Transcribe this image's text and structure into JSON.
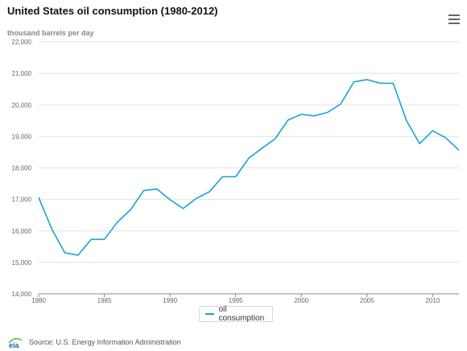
{
  "title": "United States oil consumption (1980-2012)",
  "menu_icon": "hamburger-menu-icon",
  "colors": {
    "series": "#1aa3d6",
    "grid": "#e2e2e2",
    "axis": "#888888"
  },
  "source": "Source: U.S. Energy Information Administration",
  "logo_text": "eia",
  "chart_data": {
    "type": "line",
    "title": "United States oil consumption (1980-2012)",
    "ylabel": "thousand barrels per day",
    "xlabel": "",
    "xlim": [
      1980,
      2012
    ],
    "ylim": [
      14000,
      22000
    ],
    "yticks": [
      14000,
      15000,
      16000,
      17000,
      18000,
      19000,
      20000,
      21000,
      22000
    ],
    "ytick_labels": [
      "14,000",
      "15,000",
      "16,000",
      "17,000",
      "18,000",
      "19,000",
      "20,000",
      "21,000",
      "22,000"
    ],
    "xticks": [
      1980,
      1985,
      1990,
      1995,
      2000,
      2005,
      2010
    ],
    "xtick_labels": [
      "1980",
      "1985",
      "1990",
      "1995",
      "2000",
      "2005",
      "2010"
    ],
    "grid": true,
    "legend_position": "bottom-center",
    "series": [
      {
        "name": "oil consumption",
        "color": "#1aa3d6",
        "x": [
          1980,
          1981,
          1982,
          1983,
          1984,
          1985,
          1986,
          1987,
          1988,
          1989,
          1990,
          1991,
          1992,
          1993,
          1994,
          1995,
          1996,
          1997,
          1998,
          1999,
          2000,
          2001,
          2002,
          2003,
          2004,
          2005,
          2006,
          2007,
          2008,
          2009,
          2010,
          2011,
          2012
        ],
        "y": [
          17060,
          16060,
          15300,
          15230,
          15730,
          15730,
          16280,
          16670,
          17280,
          17330,
          16990,
          16710,
          17030,
          17240,
          17720,
          17720,
          18310,
          18620,
          18920,
          19520,
          19700,
          19650,
          19760,
          20030,
          20730,
          20800,
          20690,
          20680,
          19500,
          18770,
          19180,
          18950,
          18560
        ]
      }
    ]
  }
}
